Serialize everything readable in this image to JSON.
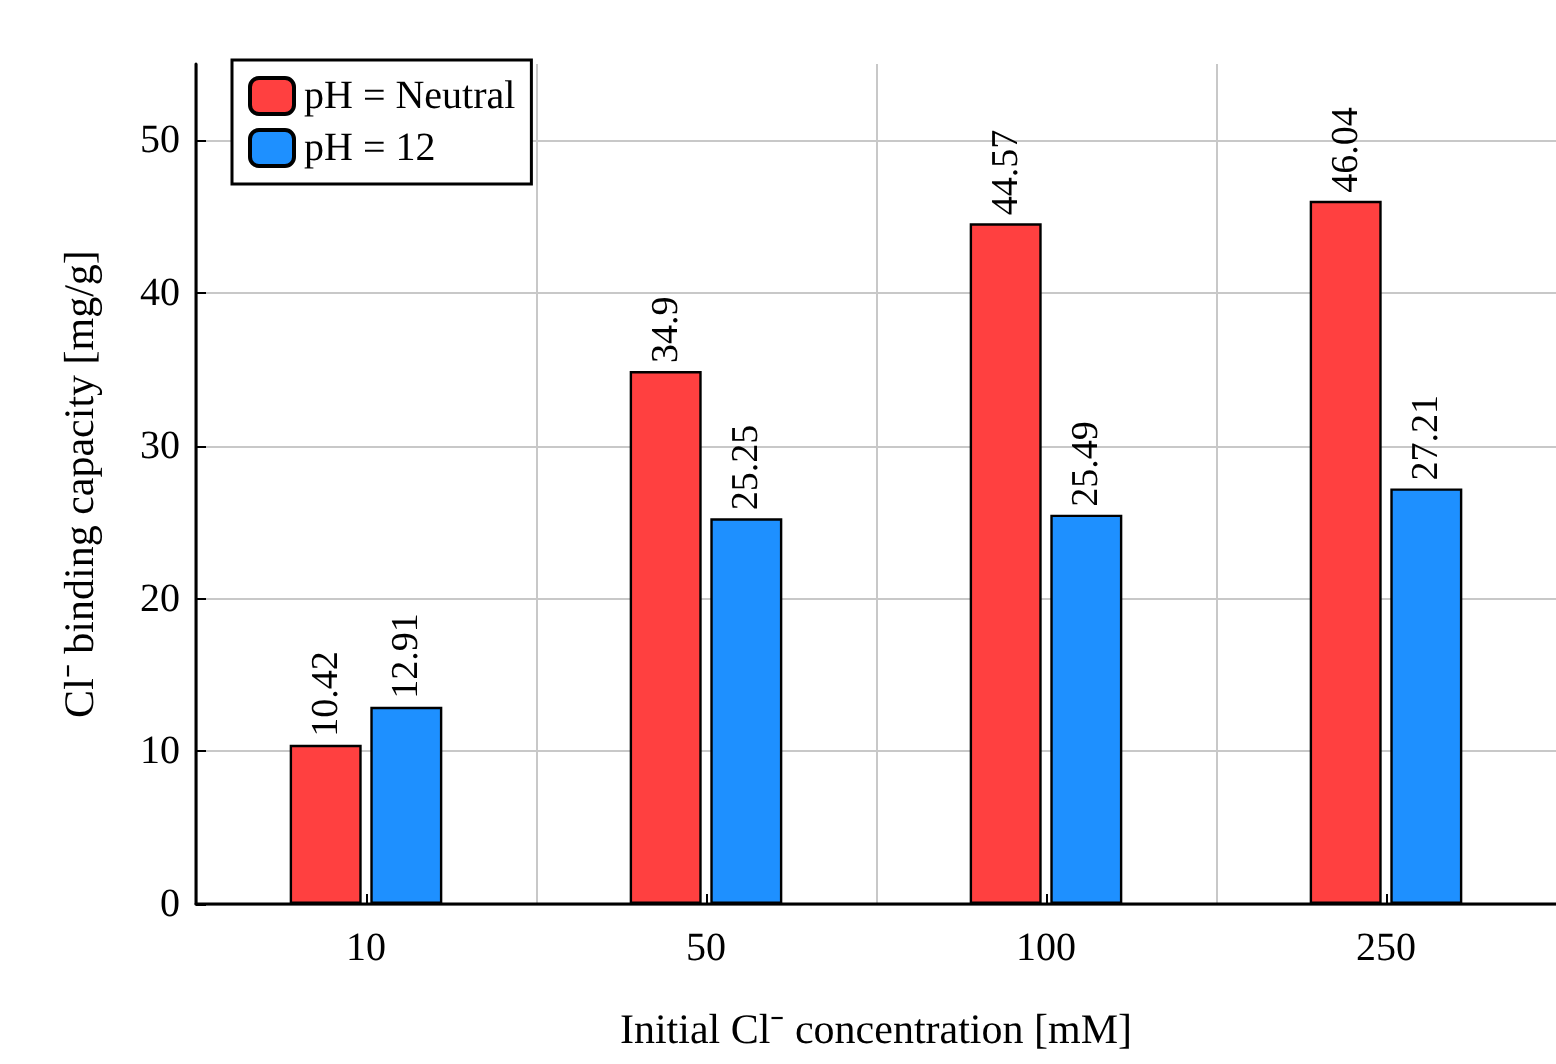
{
  "chart_data": {
    "type": "bar",
    "xlabel": "Initial Cl⁻ concentration [mM]",
    "ylabel": "Cl⁻ binding capacity [mg/g]",
    "categories": [
      "10",
      "50",
      "100",
      "250"
    ],
    "series": [
      {
        "name": "pH = Neutral",
        "color": "#ff4040",
        "values": [
          10.42,
          34.9,
          44.57,
          46.04
        ]
      },
      {
        "name": "pH = 12",
        "color": "#1e90ff",
        "values": [
          12.91,
          25.25,
          25.49,
          27.21
        ]
      }
    ],
    "ylim": [
      0,
      55
    ],
    "yticks": [
      0,
      10,
      20,
      30,
      40,
      50
    ],
    "grid": true,
    "legend": "top left",
    "data_labels": true
  }
}
